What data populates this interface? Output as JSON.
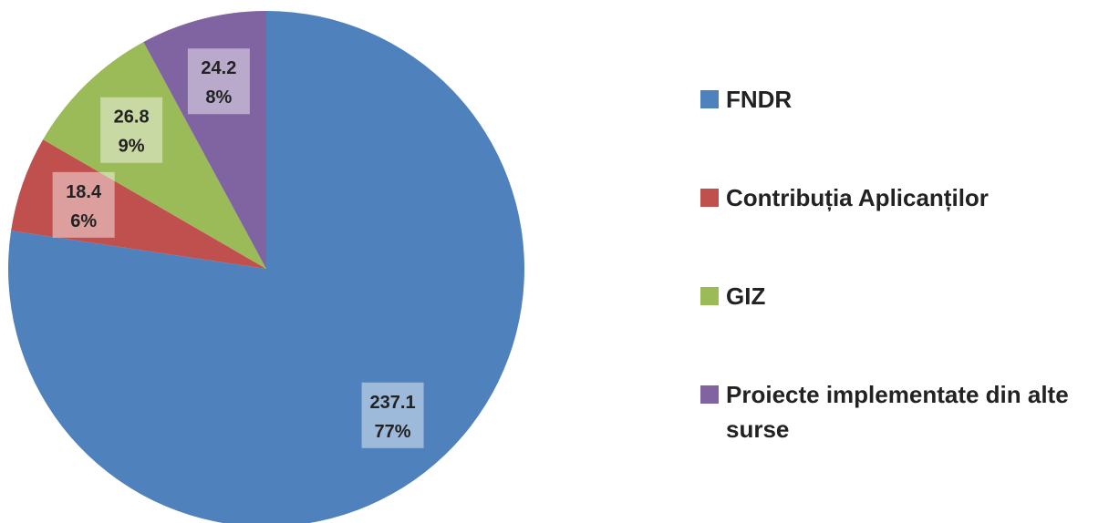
{
  "chart_data": {
    "type": "pie",
    "categories": [
      "FNDR",
      "Contribuția Aplicanților",
      "GIZ",
      "Proiecte implementate din alte surse"
    ],
    "values": [
      237.1,
      18.4,
      26.8,
      24.2
    ],
    "percent_labels": [
      "77%",
      "6%",
      "9%",
      "8%"
    ],
    "colors": [
      "#4f81bd",
      "#c0504d",
      "#9bbb59",
      "#8064a2"
    ],
    "legend": "right"
  }
}
